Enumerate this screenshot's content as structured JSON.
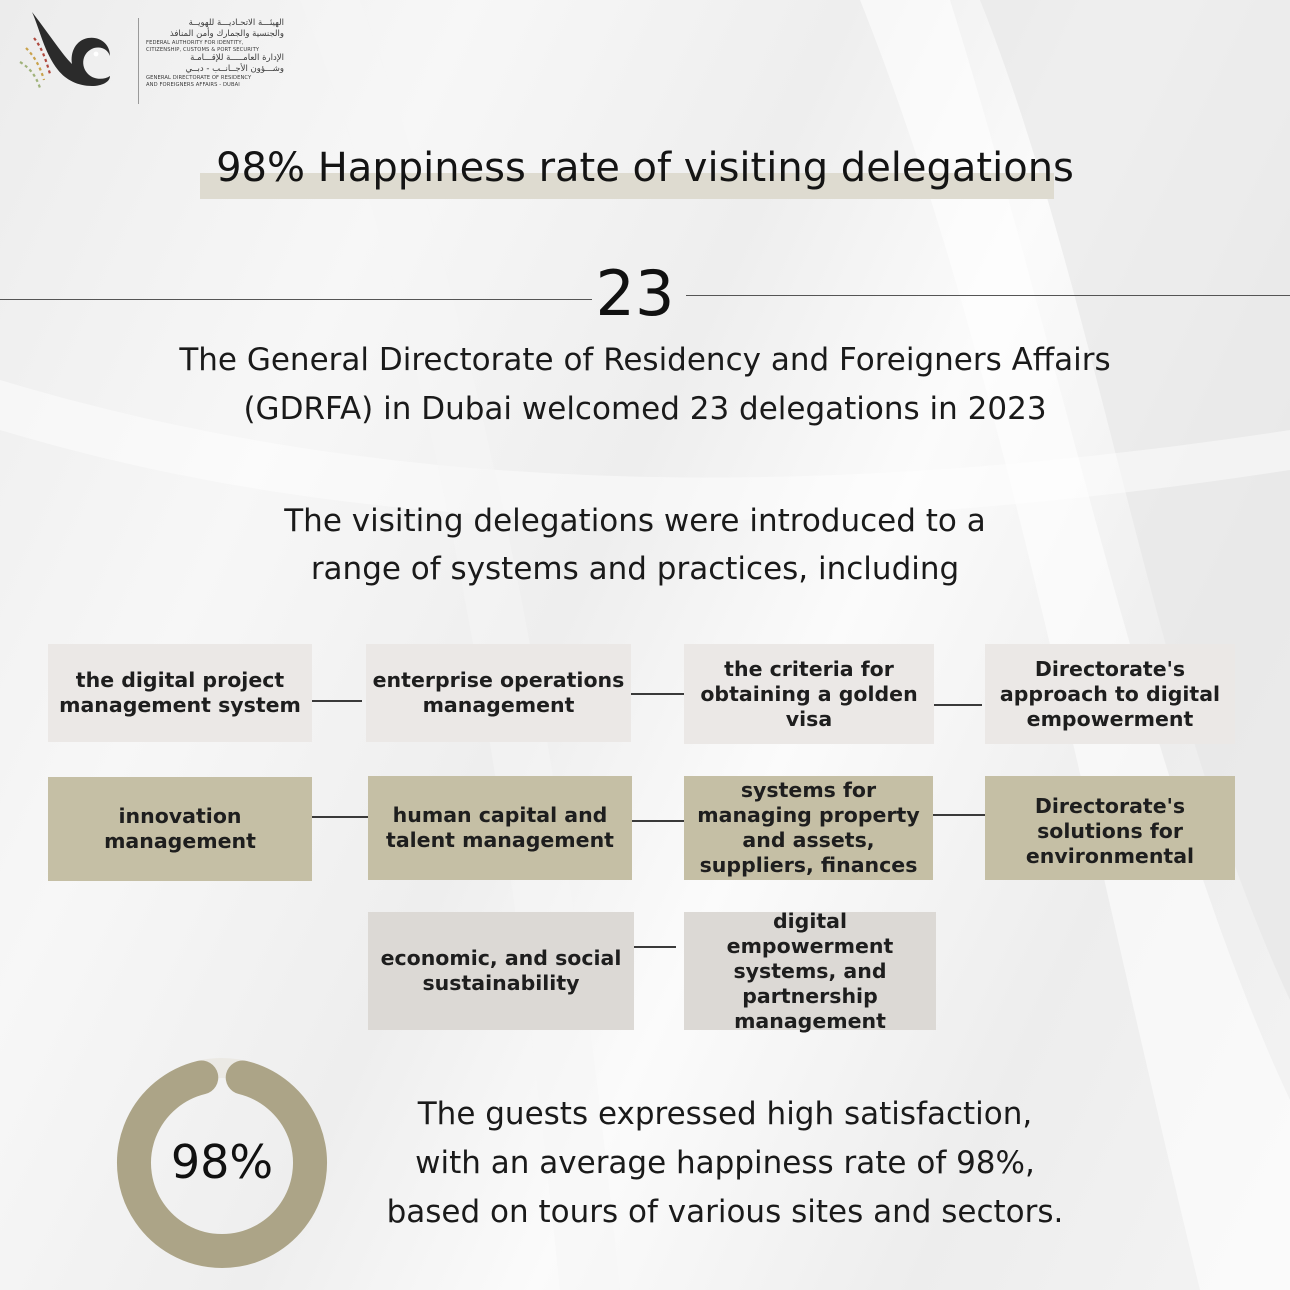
{
  "logo": {
    "arabic_line1": "الهيئـــة الاتحـاديـــة للهويــة",
    "arabic_line2": "والجنسية والجمارك وأمن المنافذ",
    "english_line1": "Federal Authority for Identity,",
    "english_line2": "Citizenship, Customs & Port Security",
    "arabic_line3": "الإدارة العامـــــة للإقـــامـة",
    "arabic_line4": "وشـــؤون الأجــانــب - دبــي",
    "english_line3": "General Directorate of Residency",
    "english_line4": "and Foreigners Affairs - Dubai",
    "icon": "falcon-logo-icon"
  },
  "headline": "98% Happiness rate of visiting delegations",
  "big_number": "23",
  "lead": {
    "line1": "The General Directorate of Residency and Foreigners Affairs",
    "line2": "(GDRFA) in Dubai welcomed 23 delegations in 2023"
  },
  "intro": {
    "line1": "The visiting delegations were introduced to a",
    "line2": "range of systems and practices, including"
  },
  "items": [
    "the digital project management system",
    "enterprise operations management",
    "the criteria for obtaining a golden visa",
    "Directorate's approach to digital empowerment",
    "innovation management",
    "human capital and talent management",
    "systems for managing property and assets, suppliers, finances",
    "Directorate's solutions for environmental",
    "economic, and social sustainability",
    "digital empowerment systems, and partnership management"
  ],
  "satisfaction": {
    "label": "98%",
    "value_percent": 98,
    "ring_color": "#aca487",
    "closing_line1": "The guests expressed high satisfaction,",
    "closing_line2": "with an average happiness rate of 98%,",
    "closing_line3": "based on tours of various sites and sectors."
  },
  "colors": {
    "light_box": "#ebe8e6",
    "tan_box": "#c5bfa5",
    "grey_box": "#dcd9d5",
    "headline_highlight": "#dedbd0"
  }
}
